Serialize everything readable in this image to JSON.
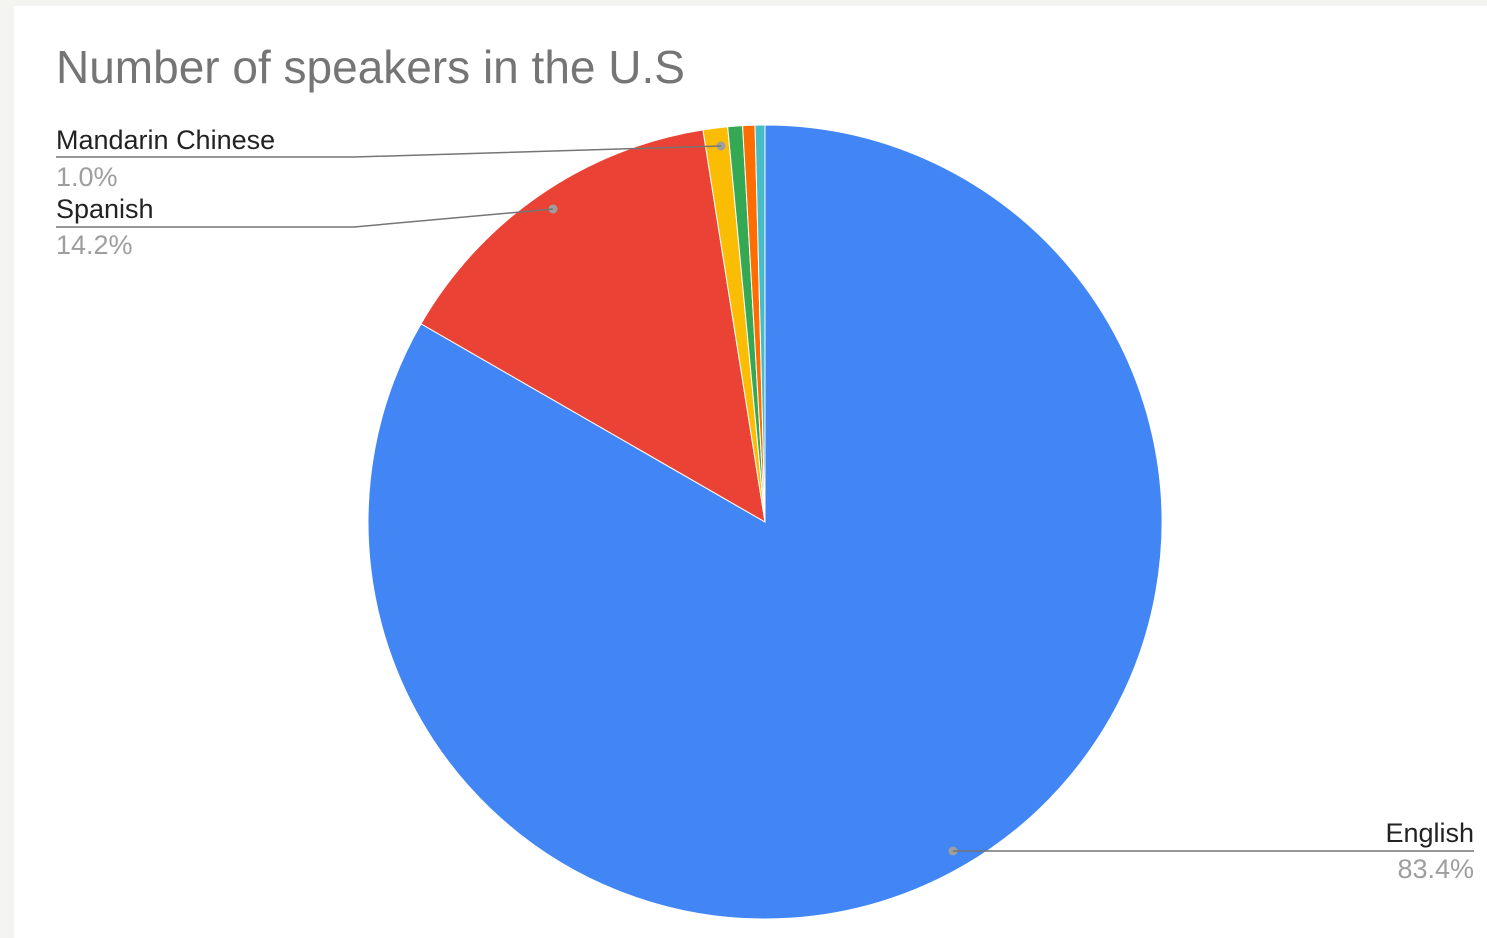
{
  "chart_data": {
    "type": "pie",
    "title": "Number of speakers in the U.S",
    "slices": [
      {
        "name": "English",
        "value": 83.4,
        "label": "English",
        "pct_label": "83.4%",
        "color": "#4285f4"
      },
      {
        "name": "Spanish",
        "value": 14.2,
        "label": "Spanish",
        "pct_label": "14.2%",
        "color": "#ea4335"
      },
      {
        "name": "Mandarin Chinese",
        "value": 1.0,
        "label": "Mandarin Chinese",
        "pct_label": "1.0%",
        "color": "#fbbc04"
      },
      {
        "name": "",
        "value": 0.6,
        "color": "#34a853"
      },
      {
        "name": "",
        "value": 0.5,
        "color": "#ff6d01"
      },
      {
        "name": "",
        "value": 0.4,
        "color": "#46bdc6"
      }
    ],
    "start_angle_deg": 0,
    "direction": "clockwise"
  }
}
